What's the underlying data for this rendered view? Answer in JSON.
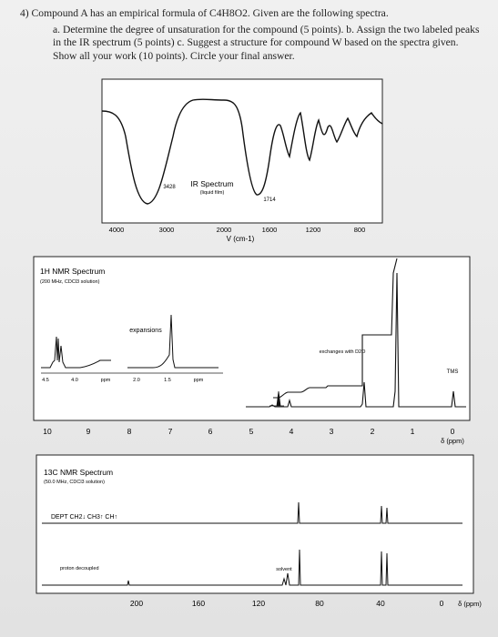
{
  "question": {
    "title": "4) Compound A has an empirical formula of C4H8O2. Given are the following spectra.",
    "body": "a. Determine the degree of unsaturation for the compound (5 points). b. Assign the two labeled peaks in the IR spectrum (5 points) c. Suggest a structure for compound W based on the spectra given. Show all your work (10 points). Circle your final answer."
  },
  "ir": {
    "title": "IR Spectrum",
    "subtitle": "(liquid film)",
    "peak_labels": [
      "3428",
      "1714"
    ],
    "ticks": [
      "4000",
      "3000",
      "2000",
      "1600",
      "1200",
      "800"
    ],
    "axis_label": "V (cm-1)"
  },
  "hnmr": {
    "title": "1H NMR Spectrum",
    "subtitle": "(200 MHz, CDCl3 solution)",
    "expansions_label": "expansions",
    "expansion_ticks_left": [
      "4.5",
      "4.0",
      "ppm"
    ],
    "expansion_ticks_right": [
      "2.0",
      "1.5",
      "ppm"
    ],
    "exchanges_label": "exchanges with D2O",
    "tms_label": "TMS",
    "ticks": [
      "10",
      "9",
      "8",
      "7",
      "6",
      "5",
      "4",
      "3",
      "2",
      "1",
      "0"
    ],
    "axis_label": "δ (ppm)"
  },
  "cnmr": {
    "title": "13C NMR Spectrum",
    "subtitle": "(50.0 MHz, CDCl3 solution)",
    "dept_label": "DEPT CH2↓ CH3↑ CH↑",
    "proton_label": "proton decoupled",
    "solvent_label": "solvent",
    "ticks": [
      "200",
      "160",
      "120",
      "80",
      "40",
      "0"
    ],
    "axis_label": "δ (ppm)"
  }
}
